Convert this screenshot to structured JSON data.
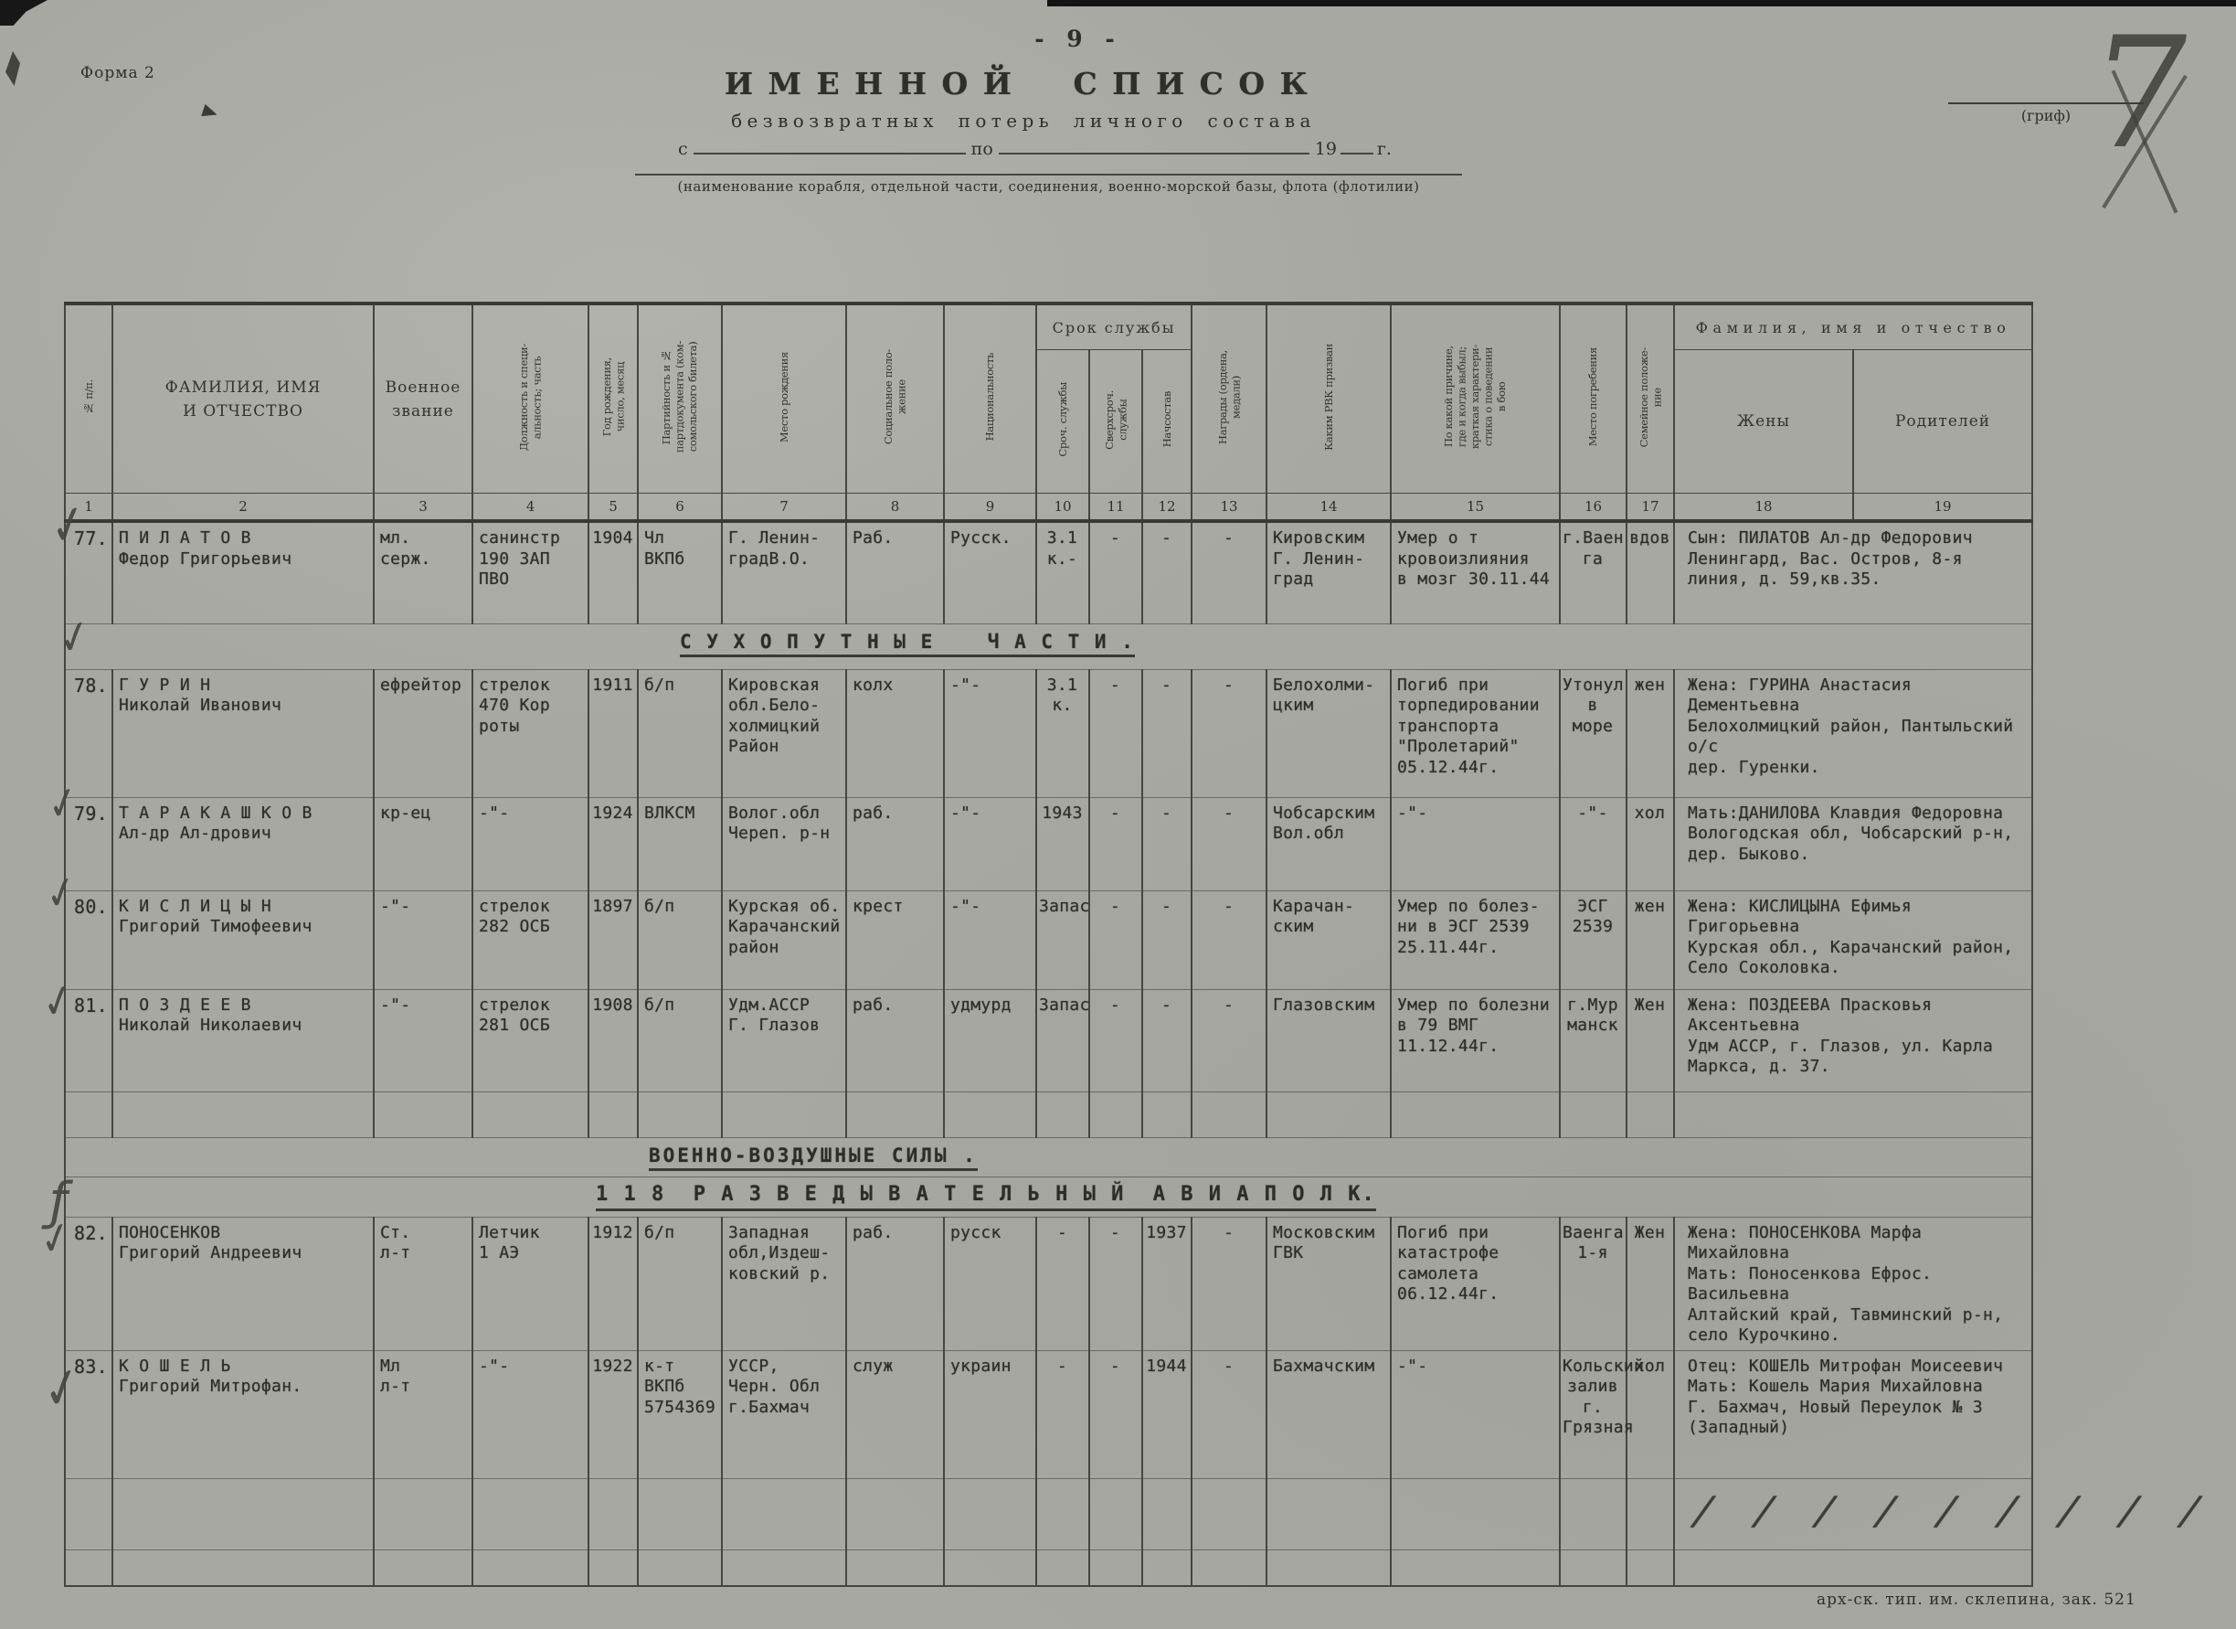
{
  "page": {
    "form_label": "Форма 2",
    "page_number": "- 9 -",
    "grif_label": "(гриф)",
    "handwritten_number": "7",
    "title": "ИМЕННОЙ СПИСОК",
    "subtitle": "безвозвратных потерь личного состава",
    "date_line": {
      "from": "с",
      "to": "по",
      "year": "19",
      "suffix": "г."
    },
    "caption": "(наименование корабля, отдельной части, соединения, военно-морской базы, флота (флотилии)",
    "slashes": "/ / / / / / / / /",
    "footer": "арх-ск. тип. им. склепина, зак. 521"
  },
  "marks": {
    "check": "✓",
    "stroke": "ƒ"
  },
  "table": {
    "groups": {
      "service": "Срок службы",
      "family": "Фамилия, имя и отчество"
    },
    "columns": [
      {
        "num": "1",
        "label": "№ п/п."
      },
      {
        "num": "2",
        "label": "ФАМИЛИЯ, ИМЯ\nИ ОТЧЕСТВО"
      },
      {
        "num": "3",
        "label": "Военное\nзвание"
      },
      {
        "num": "4",
        "label": "Должность и специ-\nальность; часть"
      },
      {
        "num": "5",
        "label": "Год рождения,\nчисло, месяц"
      },
      {
        "num": "6",
        "label": "Партийность и №\nпартдокумента (ком-\nсомольского билета)"
      },
      {
        "num": "7",
        "label": "Место рождения"
      },
      {
        "num": "8",
        "label": "Социальное поло-\nжение"
      },
      {
        "num": "9",
        "label": "Национальность"
      },
      {
        "num": "10",
        "label": "Сроч. службы"
      },
      {
        "num": "11",
        "label": "Сверхсроч.\nслужбы"
      },
      {
        "num": "12",
        "label": "Начсостав"
      },
      {
        "num": "13",
        "label": "Награды (ордена,\nмедали)"
      },
      {
        "num": "14",
        "label": "Каким РВК призван"
      },
      {
        "num": "15",
        "label": "По какой причине,\nгде и когда выбыл;\nкраткая характери-\nстика о поведении\nв бою"
      },
      {
        "num": "16",
        "label": "Место погребения"
      },
      {
        "num": "17",
        "label": "Семейное положе-\nние"
      },
      {
        "num": "18",
        "label": "Жены"
      },
      {
        "num": "19",
        "label": "Родителей"
      }
    ],
    "rows": [
      {
        "type": "entry",
        "h": 112,
        "cells": [
          "77.",
          "П И Л А Т О В\nФедор Григорьевич",
          "мл.\nсерж.",
          "санинстр\n190 ЗАП\nПВО",
          "1904",
          "Чл\nВКПб",
          "Г. Ленин-\nградВ.О.",
          "Раб.",
          "Русск.",
          "3.1 к.-",
          "-",
          "-",
          "-",
          "Кировским\nГ. Ленин-\nград",
          "Умер о т\nкровоизлияния\nв мозг 30.11.44",
          "г.Ваен\nга",
          "вдов",
          "Сын: ПИЛАТОВ Ал-др Федорович\nЛенингард, Вас. Остров, 8-я\nлиния, д. 59,кв.35."
        ]
      },
      {
        "type": "section",
        "h": 50,
        "cls": "sec-sukhoput",
        "text": "С У Х О П У Т Н Ы Е    Ч А С Т И ."
      },
      {
        "type": "entry",
        "h": 140,
        "cells": [
          "78.",
          "Г У Р И Н\nНиколай Иванович",
          "ефрейтор",
          "стрелок\n470 Кор\nроты",
          "1911",
          "б/п",
          "Кировская\nобл.Бело-\nхолмицкий\nРайон",
          "колх",
          "-\"-",
          "3.1 к.",
          "-",
          "-",
          "-",
          "Белохолми-\nцким",
          "Погиб при\nторпедировании\nтранспорта\n\"Пролетарий\"\n05.12.44г.",
          "Утонул\nв\nморе",
          "жен",
          "Жена: ГУРИНА Анастасия Дементьевна\nБелохолмицкий район, Пантыльский о/с\nдер. Гуренки."
        ]
      },
      {
        "type": "entry",
        "h": 102,
        "cells": [
          "79.",
          "Т А Р А К А Ш К О В\nАл-др Ал-дрович",
          "кр-ец",
          "-\"-",
          "1924",
          "ВЛКСМ",
          "Волог.обл\nЧереп. р-н",
          "раб.",
          "-\"-",
          "1943",
          "-",
          "-",
          "-",
          "Чобсарским\nВол.обл",
          "-\"-",
          "-\"-",
          "хол",
          "Мать:ДАНИЛОВА Клавдия Федоровна\nВологодская обл, Чобсарский р-н,\nдер. Быково."
        ]
      },
      {
        "type": "entry",
        "h": 108,
        "cells": [
          "80.",
          "К И С Л И Ц Ы Н\nГригорий Тимофеевич",
          "-\"-",
          "стрелок\n282 ОСБ",
          "1897",
          "б/п",
          "Курская об.\nКарачанский\nрайон",
          "крест",
          "-\"-",
          "Запас",
          "-",
          "-",
          "-",
          "Карачан-\nским",
          "Умер по болез-\nни в ЭСГ 2539\n25.11.44г.",
          "ЭСГ\n2539",
          "жен",
          "Жена: КИСЛИЦЫНА Ефимья Григорьевна\nКурская обл., Карачанский район,\nСело Соколовка."
        ]
      },
      {
        "type": "entry",
        "h": 112,
        "cells": [
          "81.",
          "П О З Д Е Е В\nНиколай Николаевич",
          "-\"-",
          "стрелок\n281 ОСБ",
          "1908",
          "б/п",
          "Удм.АССР\nГ. Глазов",
          "раб.",
          "удмурд",
          "Запас",
          "-",
          "-",
          "-",
          "Глазовским",
          "Умер по болезни\nв 79 ВМГ\n11.12.44г.",
          "г.Мур\nманск",
          "Жен",
          "Жена: ПОЗДЕЕВА Прасковья Аксентьевна\nУдм АССР, г. Глазов, ул. Карла\nМаркса, д. 37."
        ]
      },
      {
        "type": "empty",
        "h": 50
      },
      {
        "type": "section",
        "h": 40,
        "cls": "sec-vvs",
        "text": "ВОЕННО-ВОЗДУШНЫЕ СИЛЫ ."
      },
      {
        "type": "section",
        "h": 42,
        "cls": "sec-polk",
        "text": "1 1 8  Р А З В Е Д Ы В А Т Е Л Ь Н Ы Й  А В И А П О Л К."
      },
      {
        "type": "entry",
        "h": 136,
        "cells": [
          "82.",
          "ПОНОСЕНКОВ\nГригорий Андреевич",
          "Ст.\nл-т",
          "Летчик\n1 АЭ",
          "1912",
          "б/п",
          "Западная\nобл,Издеш-\nковский р.",
          "раб.",
          "русск",
          "-",
          "-",
          "1937",
          "-",
          "Московским\nГВК",
          "Погиб при\nкатастрофе\nсамолета\n06.12.44г.",
          "Ваенга\n1-я",
          "Жен",
          "Жена: ПОНОСЕНКОВА Марфа Михайловна\nМать: Поносенкова Ефрос. Васильевна\nАлтайский край, Тавминский р-н,\nсело Курочкино."
        ]
      },
      {
        "type": "entry",
        "h": 140,
        "cells": [
          "83.",
          "К О Ш Е Л Ь\nГригорий Митрофан.",
          "Мл\nл-т",
          "-\"-",
          "1922",
          "к-т\nВКПб\n5754369",
          "УССР,\nЧерн. Обл\nг.Бахмач",
          "служ",
          "украин",
          "-",
          "-",
          "1944",
          "-",
          "Бахмачским",
          "-\"-",
          "Кольский\nзалив\nг. Грязная",
          "хол",
          "Отец: КОШЕЛЬ Митрофан Моисеевич\nМать: Кошель Мария Михайловна\nГ. Бахмач, Новый Переулок № 3\n(Западный)"
        ]
      },
      {
        "type": "empty",
        "h": 78
      },
      {
        "type": "empty",
        "h": 40
      }
    ]
  }
}
